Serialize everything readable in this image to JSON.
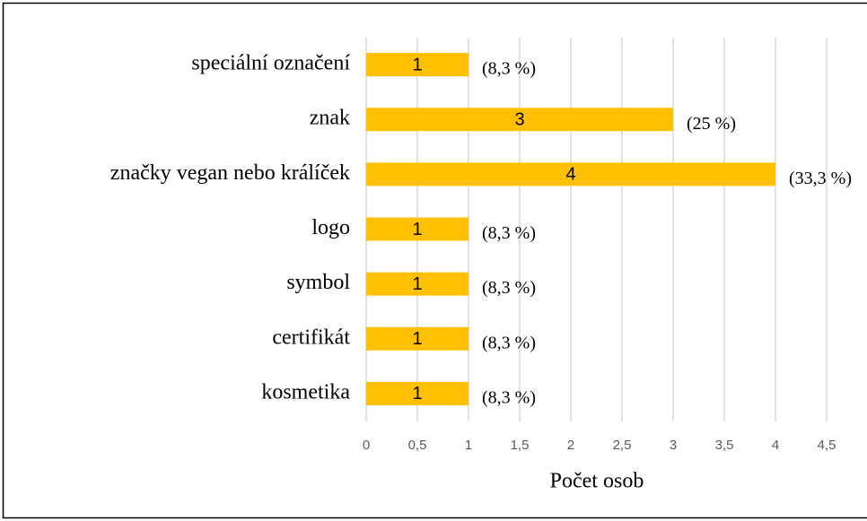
{
  "chart_data": {
    "type": "barh",
    "categories": [
      "speciální označení",
      "znak",
      "značky vegan nebo králíček",
      "logo",
      "symbol",
      "certifikát",
      "kosmetika"
    ],
    "values": [
      1,
      3,
      4,
      1,
      1,
      1,
      1
    ],
    "annotations": [
      "(8,3 %)",
      "(25 %)",
      "(33,3 %)",
      "(8,3 %)",
      "(8,3 %)",
      "(8,3 %)",
      "(8,3 %)"
    ],
    "color": "#ffc000",
    "xlabel": "Počet osob",
    "xlim": [
      0,
      4.5
    ],
    "xticks": [
      0,
      {
        "value": 0.5,
        "label": "0,5"
      },
      1,
      {
        "value": 1.5,
        "label": "1,5"
      },
      2,
      {
        "value": 2.5,
        "label": "2,5"
      },
      3,
      {
        "value": 3.5,
        "label": "3,5"
      },
      4,
      {
        "value": 4.5,
        "label": "4,5"
      }
    ],
    "grid": true
  }
}
